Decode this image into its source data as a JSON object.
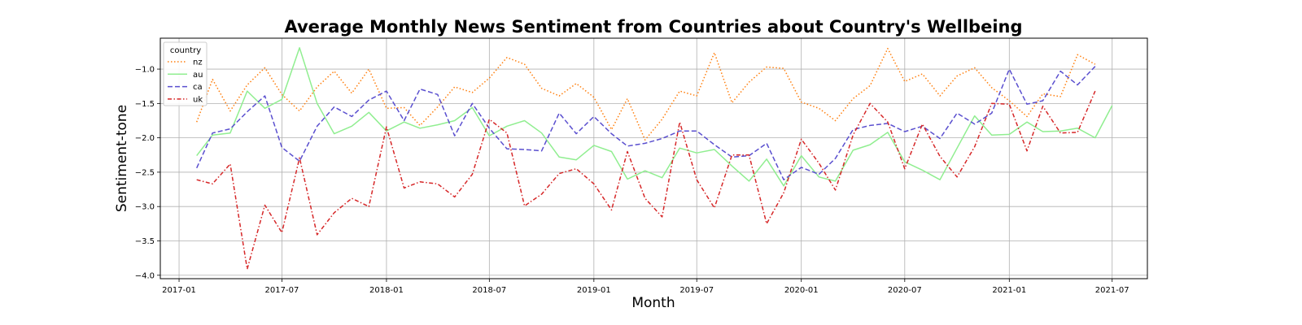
{
  "chart_data": {
    "type": "line",
    "title": "Average Monthly News Sentiment from Countries about Country's Wellbeing",
    "xlabel": "Month",
    "ylabel": "Sentiment-tone",
    "x_ticks": [
      "2017-01",
      "2017-07",
      "2018-01",
      "2018-07",
      "2019-01",
      "2019-07",
      "2020-01",
      "2020-07",
      "2021-01",
      "2021-07"
    ],
    "y_ticks": [
      -4.0,
      -3.5,
      -3.0,
      -2.5,
      -2.0,
      -1.5,
      -1.0
    ],
    "xlim": [
      "2016-11-29",
      "2021-09-01"
    ],
    "ylim": [
      -4.05,
      -0.55
    ],
    "grid": true,
    "legend": {
      "title": "country",
      "placement": "top-left"
    },
    "months": [
      "2017-02",
      "2017-03",
      "2017-04",
      "2017-05",
      "2017-06",
      "2017-07",
      "2017-08",
      "2017-09",
      "2017-10",
      "2017-11",
      "2017-12",
      "2018-01",
      "2018-02",
      "2018-03",
      "2018-04",
      "2018-05",
      "2018-06",
      "2018-07",
      "2018-08",
      "2018-09",
      "2018-10",
      "2018-11",
      "2018-12",
      "2019-01",
      "2019-02",
      "2019-03",
      "2019-04",
      "2019-05",
      "2019-06",
      "2019-07",
      "2019-08",
      "2019-09",
      "2019-10",
      "2019-11",
      "2019-12",
      "2020-01",
      "2020-02",
      "2020-03",
      "2020-04",
      "2020-05",
      "2020-06",
      "2020-07",
      "2020-08",
      "2020-09",
      "2020-10",
      "2020-11",
      "2020-12",
      "2021-01",
      "2021-02",
      "2021-03",
      "2021-04",
      "2021-05",
      "2021-06",
      "2021-07"
    ],
    "series": [
      {
        "name": "nz",
        "color": "#ff7f0e",
        "dash": "dotted",
        "values": [
          -1.77,
          -1.15,
          -1.61,
          -1.23,
          -0.98,
          -1.37,
          -1.61,
          -1.26,
          -1.03,
          -1.35,
          -1.0,
          -1.57,
          -1.56,
          -1.82,
          -1.55,
          -1.26,
          -1.34,
          -1.13,
          -0.83,
          -0.93,
          -1.28,
          -1.39,
          -1.21,
          -1.41,
          -1.88,
          -1.43,
          -2.03,
          -1.73,
          -1.32,
          -1.39,
          -0.76,
          -1.49,
          -1.19,
          -0.97,
          -0.99,
          -1.48,
          -1.57,
          -1.75,
          -1.43,
          -1.24,
          -0.7,
          -1.18,
          -1.07,
          -1.39,
          -1.1,
          -0.98,
          -1.27,
          -1.46,
          -1.69,
          -1.36,
          -1.4,
          -0.79,
          -0.93,
          null
        ]
      },
      {
        "name": "au",
        "color": "#90ee90",
        "dash": "solid",
        "values": [
          -2.26,
          -1.96,
          -1.93,
          -1.32,
          -1.57,
          -1.44,
          -0.69,
          -1.5,
          -1.94,
          -1.83,
          -1.63,
          -1.9,
          -1.77,
          -1.86,
          -1.81,
          -1.75,
          -1.56,
          -1.97,
          -1.83,
          -1.75,
          -1.93,
          -2.28,
          -2.32,
          -2.11,
          -2.2,
          -2.6,
          -2.48,
          -2.58,
          -2.15,
          -2.22,
          -2.17,
          -2.41,
          -2.63,
          -2.31,
          -2.7,
          -2.26,
          -2.57,
          -2.63,
          -2.18,
          -2.1,
          -1.92,
          -2.35,
          -2.47,
          -2.61,
          -2.15,
          -1.68,
          -1.96,
          -1.95,
          -1.77,
          -1.91,
          -1.9,
          -1.86,
          -2.0,
          -1.53
        ]
      },
      {
        "name": "ca",
        "color": "#5a4fcf",
        "dash": "dashed",
        "values": [
          -2.44,
          -1.93,
          -1.87,
          -1.62,
          -1.39,
          -2.14,
          -2.34,
          -1.83,
          -1.55,
          -1.69,
          -1.45,
          -1.32,
          -1.75,
          -1.29,
          -1.37,
          -1.97,
          -1.5,
          -1.86,
          -2.16,
          -2.17,
          -2.19,
          -1.64,
          -1.94,
          -1.69,
          -1.94,
          -2.12,
          -2.08,
          -2.01,
          -1.9,
          -1.9,
          -2.1,
          -2.28,
          -2.26,
          -2.08,
          -2.61,
          -2.43,
          -2.53,
          -2.3,
          -1.88,
          -1.82,
          -1.79,
          -1.91,
          -1.83,
          -2.01,
          -1.64,
          -1.8,
          -1.64,
          -1.0,
          -1.51,
          -1.46,
          -1.03,
          -1.23,
          -0.96,
          null
        ]
      },
      {
        "name": "uk",
        "color": "#d62728",
        "dash": "dashdot",
        "values": [
          -2.61,
          -2.67,
          -2.38,
          -3.91,
          -2.98,
          -3.38,
          -2.29,
          -3.41,
          -3.09,
          -2.88,
          -3.0,
          -1.84,
          -2.73,
          -2.64,
          -2.67,
          -2.86,
          -2.53,
          -1.73,
          -1.93,
          -2.99,
          -2.82,
          -2.52,
          -2.45,
          -2.67,
          -3.05,
          -2.2,
          -2.88,
          -3.15,
          -1.77,
          -2.61,
          -3.02,
          -2.25,
          -2.25,
          -3.25,
          -2.8,
          -2.02,
          -2.37,
          -2.76,
          -1.96,
          -1.5,
          -1.77,
          -2.45,
          -1.8,
          -2.27,
          -2.57,
          -2.13,
          -1.5,
          -1.51,
          -2.19,
          -1.54,
          -1.93,
          -1.92,
          -1.32,
          null
        ]
      }
    ]
  }
}
